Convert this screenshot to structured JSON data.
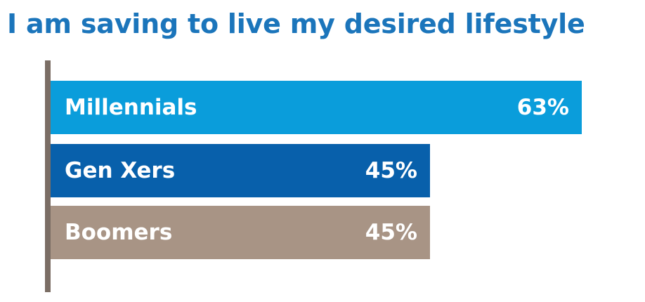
{
  "title": "I am saving to live my desired lifestyle",
  "colors": {
    "title": "#1b75bb",
    "axis": "#7b6e65",
    "millennials": "#0a9ddb",
    "gen_xers": "#0860ab",
    "boomers": "#a89485"
  },
  "chart_data": {
    "type": "bar",
    "orientation": "horizontal",
    "title": "I am saving to live my desired lifestyle",
    "categories": [
      "Millennials",
      "Gen Xers",
      "Boomers"
    ],
    "values": [
      63,
      45,
      45
    ],
    "value_labels": [
      "63%",
      "45%",
      "45%"
    ],
    "unit": "%",
    "xlim": [
      0,
      70
    ],
    "grid": false,
    "legend": "none"
  }
}
